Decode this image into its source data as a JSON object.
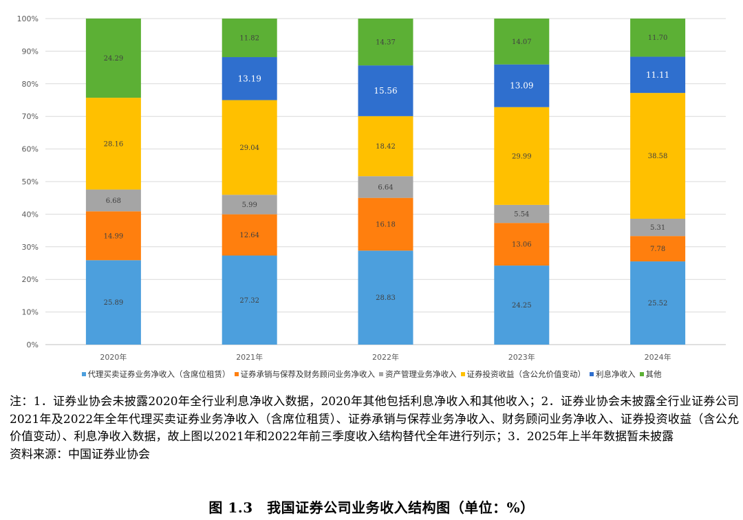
{
  "chart_data": {
    "type": "bar",
    "stacked": true,
    "categories": [
      "2020年",
      "2021年",
      "2022年",
      "2023年",
      "2024年"
    ],
    "ylim": [
      0,
      100
    ],
    "yticks": [
      "0%",
      "10%",
      "20%",
      "30%",
      "40%",
      "50%",
      "60%",
      "70%",
      "80%",
      "90%",
      "100%"
    ],
    "series": [
      {
        "name": "代理买卖证券业务净收入（含席位租赁）",
        "color": "#4c9fdd",
        "values": [
          25.89,
          27.32,
          28.83,
          24.25,
          25.52
        ]
      },
      {
        "name": "证券承销与保荐及财务顾问业务净收入",
        "color": "#ff7f0e",
        "values": [
          14.99,
          12.64,
          16.18,
          13.06,
          7.78
        ]
      },
      {
        "name": "资产管理业务净收入",
        "color": "#a5a5a5",
        "values": [
          6.68,
          5.99,
          6.64,
          5.54,
          5.31
        ]
      },
      {
        "name": "证券投资收益（含公允价值变动）",
        "color": "#ffc000",
        "values": [
          28.16,
          29.04,
          18.42,
          29.99,
          38.58
        ]
      },
      {
        "name": "利息净收入",
        "color": "#2f6fce",
        "values": [
          null,
          13.19,
          15.56,
          13.09,
          11.11
        ]
      },
      {
        "name": "其他",
        "color": "#5cb035",
        "values": [
          24.29,
          11.82,
          14.37,
          14.07,
          11.7
        ]
      }
    ],
    "grid": true,
    "legend": "bottom"
  },
  "notes": {
    "text": "注：1．证券业协会未披露2020年全行业利息净收入数据，2020年其他包括利息净收入和其他收入；2．证券业协会未披露全行业证券公司2021年及2022年全年代理买卖证券业务净收入（含席位租赁）、证券承销与保荐业务净收入、财务顾问业务净收入、证券投资收益（含公允价值变动）、利息净收入数据，故上图以2021年和2022年前三季度收入结构替代全年进行列示；3．2025年上半年数据暂未披露",
    "source": "资料来源：中国证券业协会"
  },
  "caption": "图 1.3　我国证券公司业务收入结构图（单位：%）"
}
